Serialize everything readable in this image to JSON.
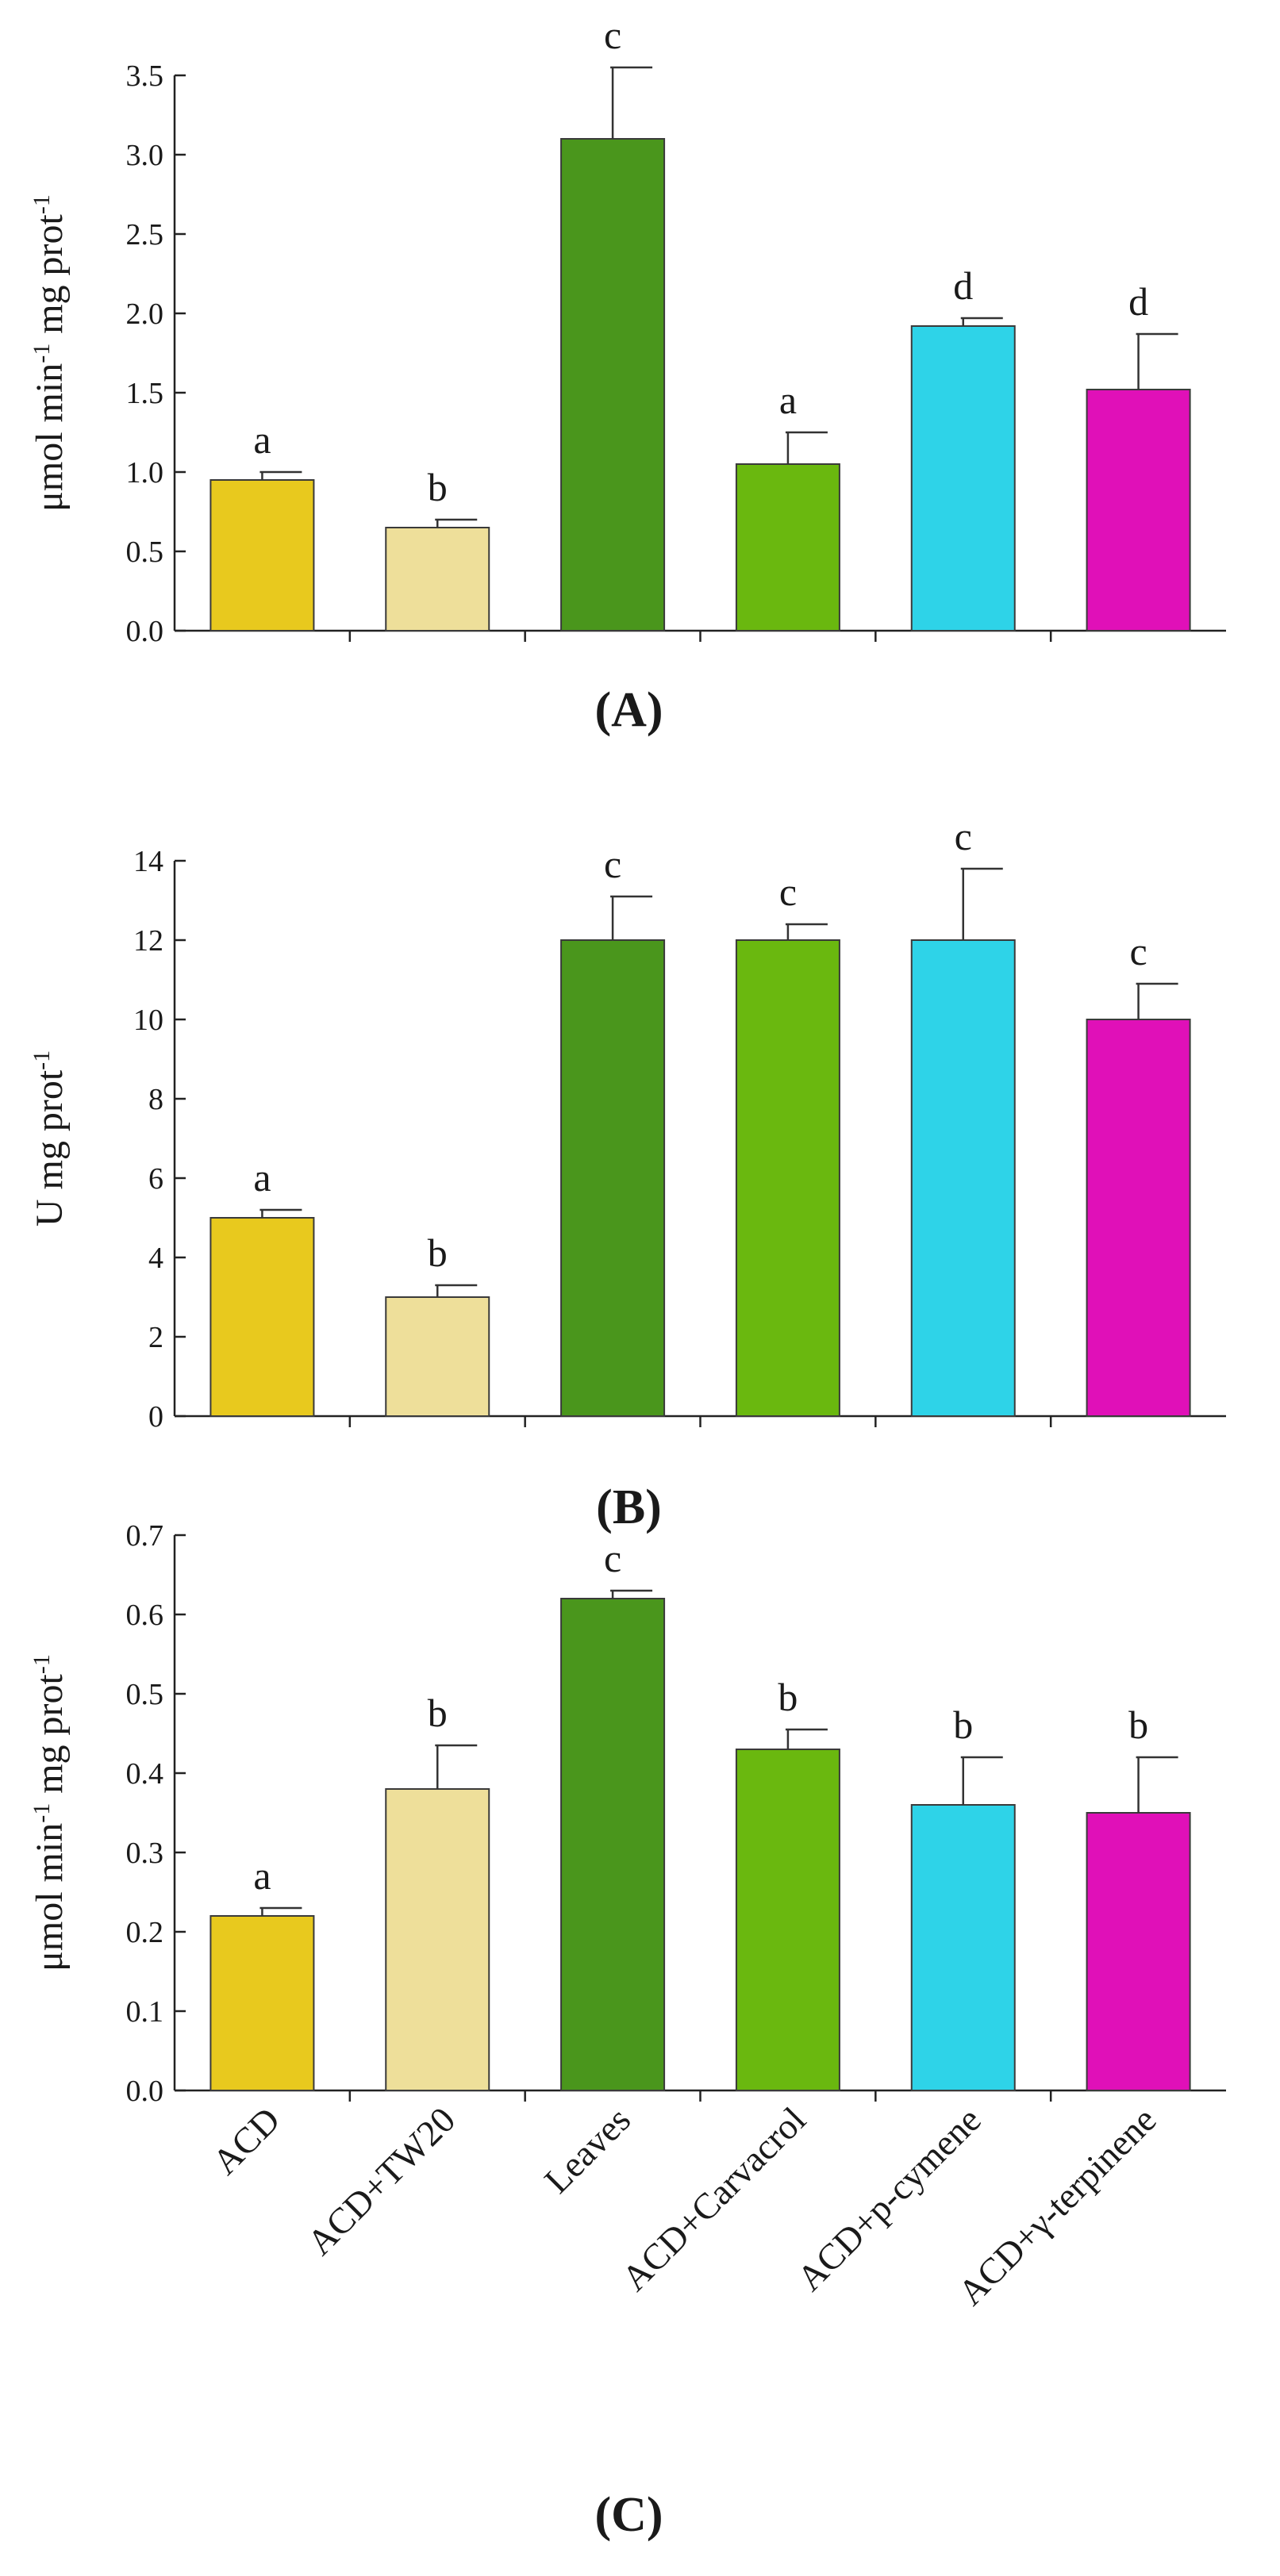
{
  "chart_data": [
    {
      "type": "bar",
      "panel_label": "(A)",
      "ylabel_main": "μmol  min",
      "ylabel_sup1": "-1",
      "ylabel_mid": " mg prot",
      "ylabel_sup2": "-1",
      "ylim": [
        0,
        3.5
      ],
      "yticks": [
        0,
        0.5,
        1.0,
        1.5,
        2.0,
        2.5,
        3.0,
        3.5
      ],
      "ytick_labels": [
        "0.0",
        "0.5",
        "1.0",
        "1.5",
        "2.0",
        "2.5",
        "3.0",
        "3.5"
      ],
      "categories": [
        "ACD",
        "ACD+TW20",
        "Leaves",
        "ACD+Carvacrol",
        "ACD+p-cymene",
        "ACD+γ-terpinene"
      ],
      "show_category_labels": false,
      "values": [
        0.95,
        0.65,
        3.1,
        1.05,
        1.92,
        1.52
      ],
      "errors": [
        0.05,
        0.05,
        0.45,
        0.2,
        0.05,
        0.35
      ],
      "significance": [
        "a",
        "b",
        "c",
        "a",
        "d",
        "d"
      ]
    },
    {
      "type": "bar",
      "panel_label": "(B)",
      "ylabel_main": "U mg prot",
      "ylabel_sup1": "-1",
      "ylabel_mid": "",
      "ylabel_sup2": "",
      "ylim": [
        0,
        14
      ],
      "yticks": [
        0,
        2,
        4,
        6,
        8,
        10,
        12,
        14
      ],
      "ytick_labels": [
        "0",
        "2",
        "4",
        "6",
        "8",
        "10",
        "12",
        "14"
      ],
      "categories": [
        "ACD",
        "ACD+TW20",
        "Leaves",
        "ACD+Carvacrol",
        "ACD+p-cymene",
        "ACD+γ-terpinene"
      ],
      "show_category_labels": false,
      "values": [
        5.0,
        3.0,
        12.0,
        12.0,
        12.0,
        10.0
      ],
      "errors": [
        0.2,
        0.3,
        1.1,
        0.4,
        1.8,
        0.9
      ],
      "significance": [
        "a",
        "b",
        "c",
        "c",
        "c",
        "c"
      ]
    },
    {
      "type": "bar",
      "panel_label": "(C)",
      "ylabel_main": "μmol  min",
      "ylabel_sup1": "-1",
      "ylabel_mid": " mg prot",
      "ylabel_sup2": "-1",
      "ylim": [
        0,
        0.7
      ],
      "yticks": [
        0,
        0.1,
        0.2,
        0.3,
        0.4,
        0.5,
        0.6,
        0.7
      ],
      "ytick_labels": [
        "0.0",
        "0.1",
        "0.2",
        "0.3",
        "0.4",
        "0.5",
        "0.6",
        "0.7"
      ],
      "categories": [
        "ACD",
        "ACD+TW20",
        "Leaves",
        "ACD+Carvacrol",
        "ACD+p-cymene",
        "ACD+γ-terpinene"
      ],
      "show_category_labels": true,
      "values": [
        0.22,
        0.38,
        0.62,
        0.43,
        0.36,
        0.35
      ],
      "errors": [
        0.01,
        0.055,
        0.01,
        0.025,
        0.06,
        0.07
      ],
      "significance": [
        "a",
        "b",
        "c",
        "b",
        "b",
        "b"
      ]
    }
  ],
  "colors": [
    "#E8C91E",
    "#EEDF9A",
    "#4A961C",
    "#6AB80F",
    "#2ED3E8",
    "#E010B8"
  ]
}
